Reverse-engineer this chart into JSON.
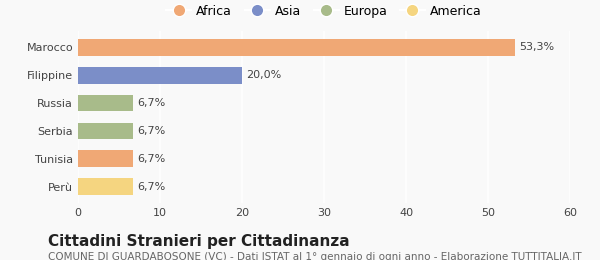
{
  "categories": [
    "Marocco",
    "Filippine",
    "Russia",
    "Serbia",
    "Tunisia",
    "Perù"
  ],
  "values": [
    53.3,
    20.0,
    6.7,
    6.7,
    6.7,
    6.7
  ],
  "bar_colors": [
    "#F0A875",
    "#7B8EC8",
    "#A8BB8A",
    "#A8BB8A",
    "#F0A875",
    "#F5D580"
  ],
  "labels": [
    "53,3%",
    "20,0%",
    "6,7%",
    "6,7%",
    "6,7%",
    "6,7%"
  ],
  "legend_items": [
    {
      "label": "Africa",
      "color": "#F0A875"
    },
    {
      "label": "Asia",
      "color": "#7B8EC8"
    },
    {
      "label": "Europa",
      "color": "#A8BB8A"
    },
    {
      "label": "America",
      "color": "#F5D580"
    }
  ],
  "xlim": [
    0,
    60
  ],
  "xticks": [
    0,
    10,
    20,
    30,
    40,
    50,
    60
  ],
  "title": "Cittadini Stranieri per Cittadinanza",
  "subtitle": "COMUNE DI GUARDABOSONE (VC) - Dati ISTAT al 1° gennaio di ogni anno - Elaborazione TUTTITALIA.IT",
  "background_color": "#f9f9f9",
  "bar_height": 0.6,
  "title_fontsize": 11,
  "subtitle_fontsize": 7.5,
  "label_fontsize": 8,
  "tick_fontsize": 8,
  "legend_fontsize": 9
}
